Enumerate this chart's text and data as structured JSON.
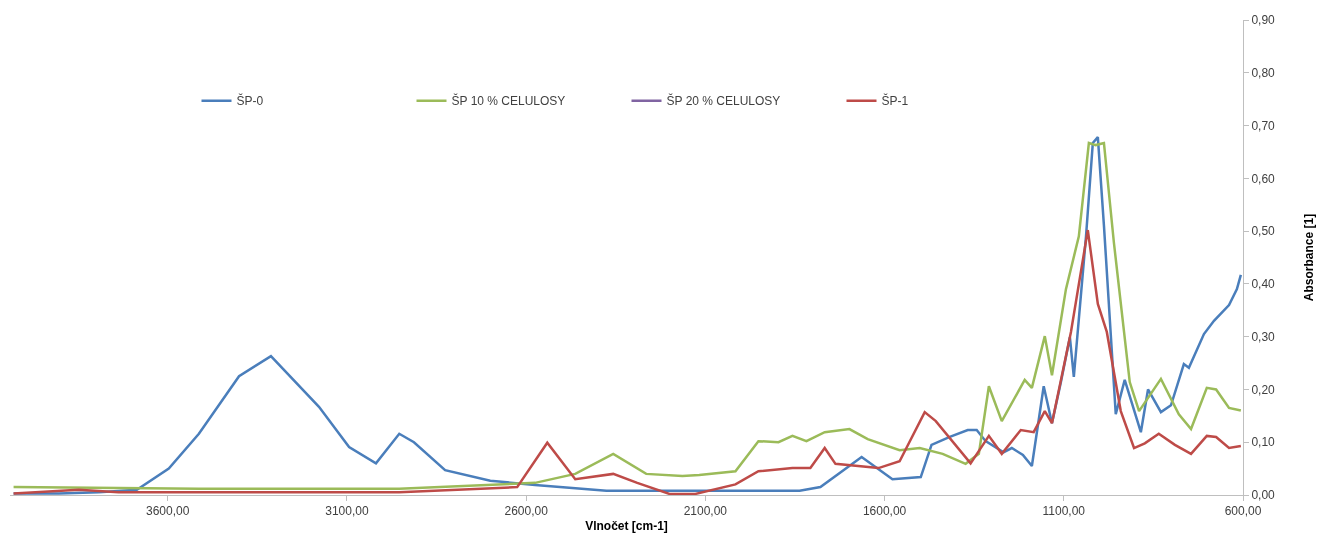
{
  "chart_data": {
    "type": "line",
    "xlabel": "Vlnočet [cm-1]",
    "ylabel": "Absorbance [1]",
    "xlim": [
      4040,
      600
    ],
    "xticks": [
      {
        "value": 3600,
        "label": "3600,00"
      },
      {
        "value": 3100,
        "label": "3100,00"
      },
      {
        "value": 2600,
        "label": "2600,00"
      },
      {
        "value": 2100,
        "label": "2100,00"
      },
      {
        "value": 1600,
        "label": "1600,00"
      },
      {
        "value": 1100,
        "label": "1100,00"
      },
      {
        "value": 600,
        "label": "600,00"
      }
    ],
    "ylim": [
      0,
      0.9
    ],
    "yticks": [
      {
        "value": 0,
        "label": "0,00"
      },
      {
        "value": 0.1,
        "label": "0,10"
      },
      {
        "value": 0.2,
        "label": "0,20"
      },
      {
        "value": 0.3,
        "label": "0,30"
      },
      {
        "value": 0.4,
        "label": "0,40"
      },
      {
        "value": 0.5,
        "label": "0,50"
      },
      {
        "value": 0.6,
        "label": "0,60"
      },
      {
        "value": 0.7,
        "label": "0,70"
      },
      {
        "value": 0.8,
        "label": "0,80"
      },
      {
        "value": 0.9,
        "label": "0,90"
      }
    ],
    "grid": false,
    "legend": "top",
    "marker": "none",
    "line_style": "solid",
    "series": [
      {
        "name": "ŠP-0",
        "color": "#4a7ebb",
        "x": [
          4030,
          3904,
          3792,
          3686,
          3597,
          3513,
          3401,
          3312,
          3178,
          3094,
          3019,
          2954,
          2913,
          2826,
          2700,
          2575,
          2376,
          2117,
          1837,
          1779,
          1664,
          1578,
          1499,
          1469,
          1418,
          1368,
          1343,
          1318,
          1268,
          1245,
          1214,
          1189,
          1156,
          1133,
          1108,
          1083,
          1072,
          1038,
          1019,
          1005,
          988,
          955,
          930,
          885,
          865,
          829,
          801,
          765,
          751,
          709,
          681,
          639,
          617,
          606
        ],
        "values": [
          0.003,
          0.003,
          0.005,
          0.01,
          0.05,
          0.116,
          0.225,
          0.263,
          0.167,
          0.091,
          0.06,
          0.116,
          0.1,
          0.047,
          0.027,
          0.019,
          0.008,
          0.008,
          0.008,
          0.015,
          0.072,
          0.03,
          0.034,
          0.095,
          0.11,
          0.123,
          0.123,
          0.102,
          0.081,
          0.089,
          0.076,
          0.055,
          0.206,
          0.136,
          0.214,
          0.299,
          0.224,
          0.49,
          0.667,
          0.678,
          0.511,
          0.153,
          0.218,
          0.119,
          0.2,
          0.157,
          0.17,
          0.248,
          0.241,
          0.305,
          0.33,
          0.36,
          0.39,
          0.417
        ]
      },
      {
        "name": "ŠP 10 % CELULOSY",
        "color": "#9bbb59",
        "x": [
          4030,
          3513,
          2954,
          2575,
          2463,
          2357,
          2265,
          2164,
          2117,
          2016,
          1952,
          1896,
          1857,
          1818,
          1767,
          1698,
          1647,
          1558,
          1502,
          1438,
          1374,
          1337,
          1309,
          1273,
          1209,
          1189,
          1153,
          1133,
          1094,
          1058,
          1030,
          1011,
          988,
          960,
          916,
          890,
          829,
          779,
          745,
          701,
          675,
          639,
          606
        ],
        "values": [
          0.015,
          0.012,
          0.012,
          0.023,
          0.04,
          0.078,
          0.04,
          0.036,
          0.038,
          0.045,
          0.102,
          0.1,
          0.112,
          0.102,
          0.119,
          0.125,
          0.106,
          0.085,
          0.089,
          0.078,
          0.059,
          0.078,
          0.206,
          0.14,
          0.218,
          0.203,
          0.301,
          0.227,
          0.39,
          0.49,
          0.667,
          0.663,
          0.667,
          0.477,
          0.214,
          0.159,
          0.22,
          0.153,
          0.125,
          0.203,
          0.2,
          0.165,
          0.16
        ]
      },
      {
        "name": "ŠP 20 % CELULOSY",
        "color": "#8064a2"
      },
      {
        "name": "ŠP-1",
        "color": "#be4b48",
        "x": [
          4030,
          3848,
          3737,
          2954,
          2625,
          2541,
          2463,
          2357,
          2290,
          2200,
          2128,
          2016,
          1952,
          1857,
          1807,
          1767,
          1737,
          1617,
          1558,
          1488,
          1457,
          1360,
          1309,
          1273,
          1220,
          1184,
          1153,
          1133,
          1080,
          1033,
          1005,
          980,
          941,
          904,
          874,
          835,
          790,
          745,
          701,
          675,
          639,
          606
        ],
        "values": [
          0.003,
          0.01,
          0.005,
          0.005,
          0.015,
          0.099,
          0.03,
          0.04,
          0.023,
          0.002,
          0.002,
          0.02,
          0.045,
          0.051,
          0.051,
          0.089,
          0.059,
          0.051,
          0.064,
          0.157,
          0.14,
          0.06,
          0.112,
          0.078,
          0.123,
          0.119,
          0.159,
          0.136,
          0.309,
          0.502,
          0.362,
          0.309,
          0.159,
          0.089,
          0.098,
          0.116,
          0.095,
          0.078,
          0.112,
          0.11,
          0.089,
          0.093
        ]
      }
    ]
  }
}
